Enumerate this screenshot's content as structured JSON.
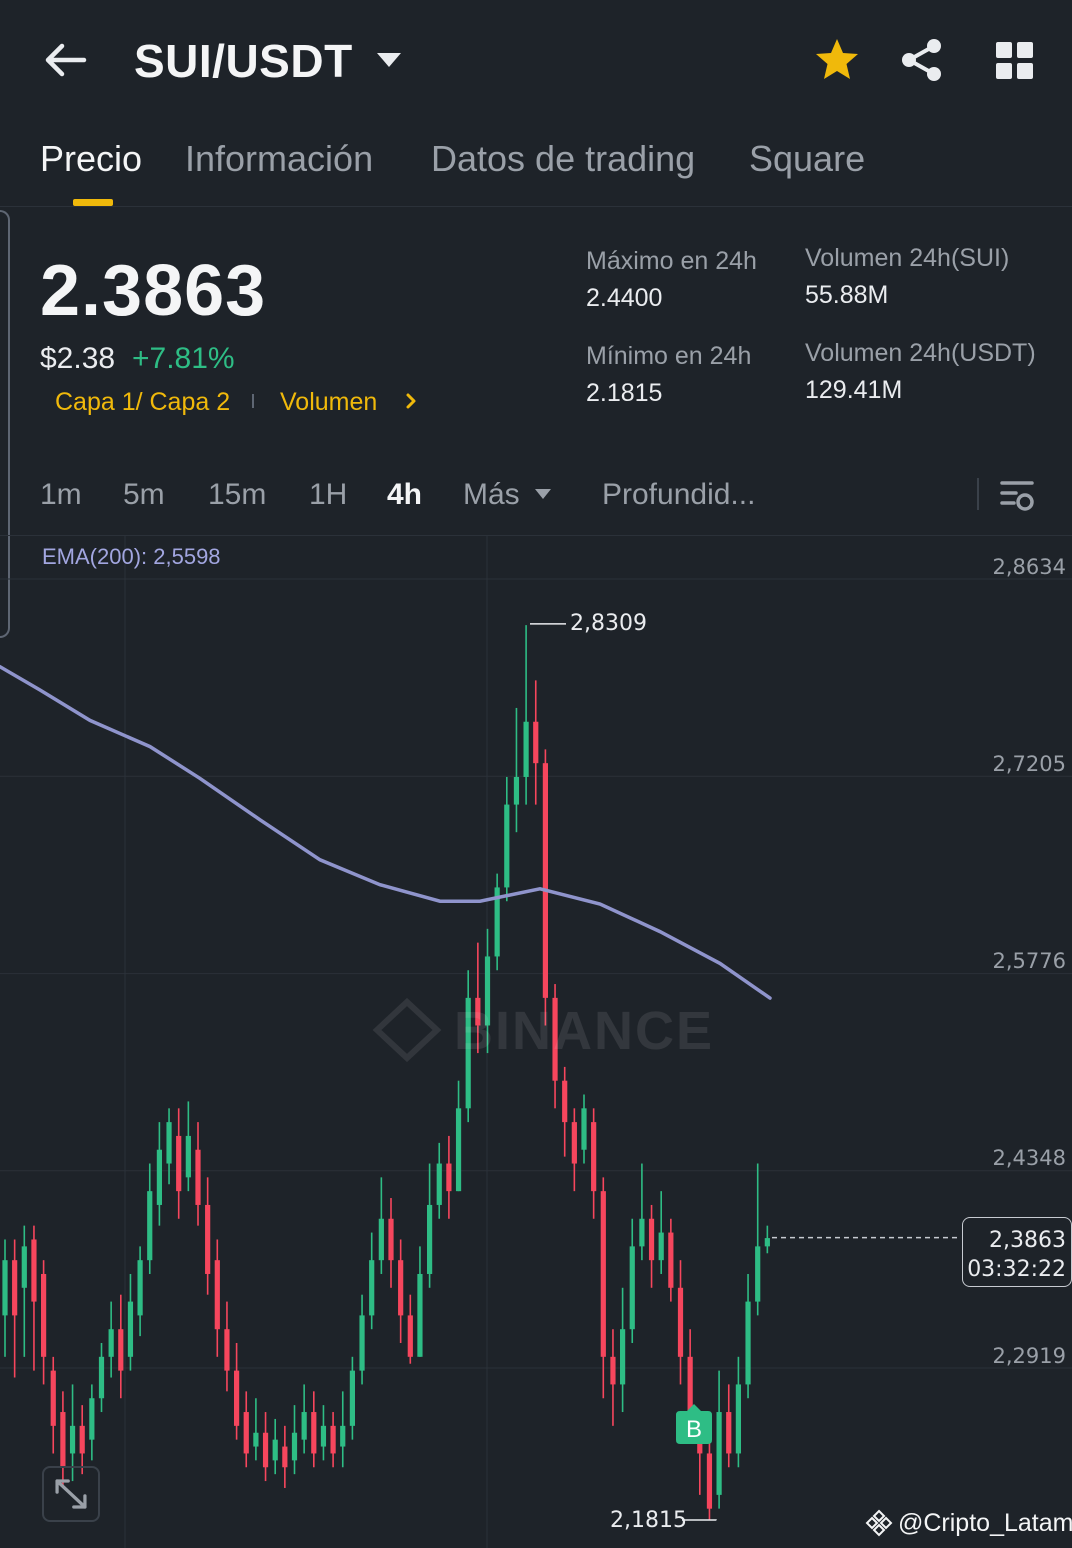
{
  "header": {
    "pair": "SUI/USDT",
    "icons": [
      "back-arrow-icon",
      "caret-down-icon",
      "star-icon",
      "share-icon",
      "grid-icon"
    ],
    "star_color": "#f0b90b"
  },
  "tabs": [
    "Precio",
    "Información",
    "Datos de trading",
    "Square"
  ],
  "active_tab": "Precio",
  "price": {
    "last": "2.3863",
    "usd": "$2.38",
    "change": "+7.81%",
    "tag1": "Capa 1/ Capa 2",
    "tag2": "Volumen"
  },
  "stats": {
    "high_label": "Máximo en 24h",
    "high_value": "2.4400",
    "low_label": "Mínimo en 24h",
    "low_value": "2.1815",
    "vol_sui_label": "Volumen 24h(SUI)",
    "vol_sui_value": "55.88M",
    "vol_usdt_label": "Volumen 24h(USDT)",
    "vol_usdt_value": "129.41M"
  },
  "intervals": [
    "1m",
    "5m",
    "15m",
    "1H",
    "4h",
    "Más",
    "Profundid..."
  ],
  "active_interval": "4h",
  "chart": {
    "ema_label": "EMA(200): 2,5598",
    "axis_labels": [
      "2,8634",
      "2,7205",
      "2,5776",
      "2,4348",
      "2,2919"
    ],
    "current_price": "2,3863",
    "countdown": "03:32:22",
    "high_marker": "2,8309",
    "low_marker": "2,1815",
    "buy_marker": "B",
    "watermark": "BINANCE",
    "colors": {
      "up": "#2ebd85",
      "down": "#f6465d",
      "ema": "#8f94cc"
    }
  },
  "chart_data": {
    "type": "candlestick",
    "title": "",
    "ylim": [
      2.155,
      2.878
    ],
    "y_ticks": [
      2.8634,
      2.7205,
      2.5776,
      2.4348,
      2.2919
    ],
    "series": [
      {
        "name": "SUI/USDT 4h",
        "candles": [
          [
            2.33,
            2.37,
            2.385,
            2.3
          ],
          [
            2.37,
            2.33,
            2.385,
            2.285
          ],
          [
            2.35,
            2.38,
            2.395,
            2.3
          ],
          [
            2.385,
            2.34,
            2.395,
            2.29
          ],
          [
            2.36,
            2.3,
            2.37,
            2.28
          ],
          [
            2.29,
            2.25,
            2.3,
            2.23
          ],
          [
            2.26,
            2.22,
            2.275,
            2.205
          ],
          [
            2.23,
            2.25,
            2.28,
            2.21
          ],
          [
            2.25,
            2.23,
            2.265,
            2.215
          ],
          [
            2.24,
            2.27,
            2.28,
            2.225
          ],
          [
            2.27,
            2.3,
            2.31,
            2.26
          ],
          [
            2.3,
            2.32,
            2.34,
            2.285
          ],
          [
            2.32,
            2.29,
            2.345,
            2.27
          ],
          [
            2.3,
            2.34,
            2.36,
            2.29
          ],
          [
            2.33,
            2.37,
            2.38,
            2.315
          ],
          [
            2.37,
            2.42,
            2.44,
            2.36
          ],
          [
            2.41,
            2.45,
            2.47,
            2.395
          ],
          [
            2.44,
            2.47,
            2.48,
            2.425
          ],
          [
            2.46,
            2.42,
            2.48,
            2.4
          ],
          [
            2.43,
            2.46,
            2.485,
            2.42
          ],
          [
            2.45,
            2.41,
            2.47,
            2.395
          ],
          [
            2.41,
            2.36,
            2.43,
            2.345
          ],
          [
            2.37,
            2.32,
            2.385,
            2.3
          ],
          [
            2.32,
            2.29,
            2.34,
            2.275
          ],
          [
            2.29,
            2.25,
            2.31,
            2.24
          ],
          [
            2.26,
            2.23,
            2.275,
            2.22
          ],
          [
            2.235,
            2.245,
            2.27,
            2.225
          ],
          [
            2.245,
            2.22,
            2.26,
            2.21
          ],
          [
            2.225,
            2.24,
            2.255,
            2.215
          ],
          [
            2.235,
            2.22,
            2.25,
            2.205
          ],
          [
            2.225,
            2.245,
            2.265,
            2.215
          ],
          [
            2.24,
            2.26,
            2.28,
            2.23
          ],
          [
            2.26,
            2.23,
            2.275,
            2.22
          ],
          [
            2.235,
            2.25,
            2.265,
            2.225
          ],
          [
            2.25,
            2.23,
            2.26,
            2.22
          ],
          [
            2.235,
            2.25,
            2.275,
            2.22
          ],
          [
            2.25,
            2.29,
            2.3,
            2.24
          ],
          [
            2.29,
            2.33,
            2.345,
            2.28
          ],
          [
            2.33,
            2.37,
            2.39,
            2.32
          ],
          [
            2.37,
            2.4,
            2.43,
            2.36
          ],
          [
            2.4,
            2.37,
            2.415,
            2.35
          ],
          [
            2.37,
            2.33,
            2.385,
            2.31
          ],
          [
            2.33,
            2.3,
            2.345,
            2.295
          ],
          [
            2.3,
            2.36,
            2.38,
            2.3
          ],
          [
            2.36,
            2.41,
            2.44,
            2.35
          ],
          [
            2.41,
            2.44,
            2.455,
            2.4
          ],
          [
            2.44,
            2.42,
            2.46,
            2.4
          ],
          [
            2.42,
            2.48,
            2.5,
            2.42
          ],
          [
            2.48,
            2.56,
            2.58,
            2.47
          ],
          [
            2.56,
            2.54,
            2.6,
            2.52
          ],
          [
            2.54,
            2.59,
            2.61,
            2.52
          ],
          [
            2.59,
            2.64,
            2.65,
            2.58
          ],
          [
            2.64,
            2.7,
            2.72,
            2.63
          ],
          [
            2.7,
            2.72,
            2.77,
            2.68
          ],
          [
            2.72,
            2.76,
            2.83,
            2.7
          ],
          [
            2.76,
            2.73,
            2.79,
            2.7
          ],
          [
            2.73,
            2.56,
            2.74,
            2.54
          ],
          [
            2.56,
            2.5,
            2.57,
            2.48
          ],
          [
            2.5,
            2.47,
            2.51,
            2.445
          ],
          [
            2.47,
            2.44,
            2.48,
            2.42
          ],
          [
            2.45,
            2.48,
            2.49,
            2.44
          ],
          [
            2.47,
            2.42,
            2.48,
            2.4
          ],
          [
            2.42,
            2.3,
            2.43,
            2.27
          ],
          [
            2.3,
            2.28,
            2.32,
            2.25
          ],
          [
            2.28,
            2.32,
            2.35,
            2.26
          ],
          [
            2.32,
            2.38,
            2.4,
            2.31
          ],
          [
            2.38,
            2.4,
            2.44,
            2.37
          ],
          [
            2.4,
            2.37,
            2.41,
            2.35
          ],
          [
            2.37,
            2.39,
            2.42,
            2.36
          ],
          [
            2.39,
            2.35,
            2.4,
            2.34
          ],
          [
            2.35,
            2.3,
            2.37,
            2.28
          ],
          [
            2.3,
            2.25,
            2.32,
            2.24
          ],
          [
            2.25,
            2.23,
            2.26,
            2.2
          ],
          [
            2.23,
            2.19,
            2.24,
            2.182
          ],
          [
            2.2,
            2.26,
            2.29,
            2.19
          ],
          [
            2.26,
            2.23,
            2.28,
            2.22
          ],
          [
            2.23,
            2.28,
            2.3,
            2.22
          ],
          [
            2.28,
            2.34,
            2.36,
            2.27
          ],
          [
            2.34,
            2.38,
            2.44,
            2.33
          ],
          [
            2.38,
            2.386,
            2.395,
            2.375
          ]
        ]
      },
      {
        "name": "EMA(200)",
        "value": 2.5598
      }
    ],
    "current_price": 2.3863,
    "high_marker": 2.8309,
    "low_marker": 2.1815
  }
}
